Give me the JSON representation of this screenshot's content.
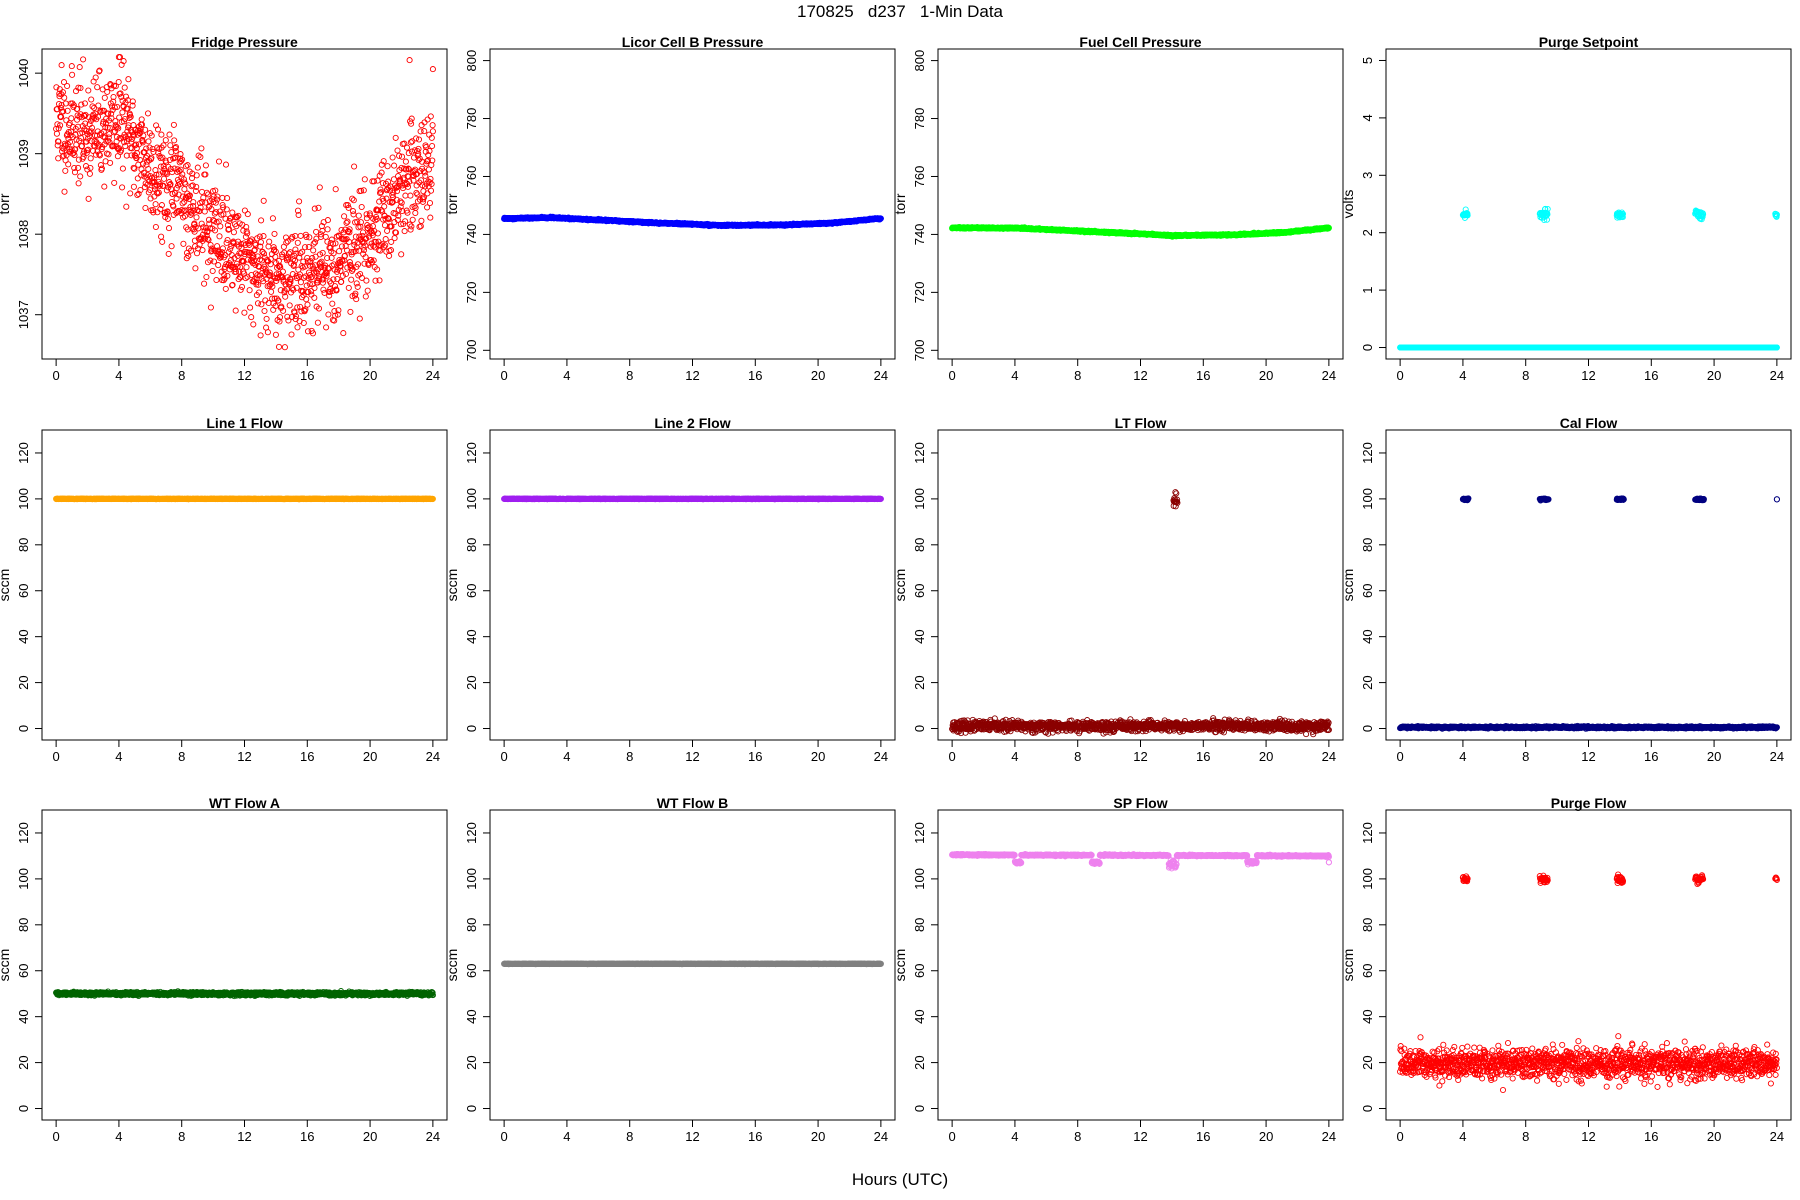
{
  "title": "170825   d237   1-Min Data",
  "xlabel": "Hours (UTC)",
  "chart_data": [
    {
      "type": "scatter",
      "title": "Fridge Pressure",
      "ylabel": "torr",
      "ylim": [
        1036.45,
        1040.3
      ],
      "yticks": [
        1037,
        1038,
        1039,
        1040
      ],
      "xlim": [
        -0.9,
        24.9
      ],
      "xticks": [
        0,
        4,
        8,
        12,
        16,
        20,
        24
      ],
      "color": "#ff0000",
      "filled": false,
      "gen": {
        "kind": "curve",
        "pts": [
          [
            0,
            1039.4
          ],
          [
            2,
            1039.25
          ],
          [
            4,
            1039.4
          ],
          [
            6,
            1038.85
          ],
          [
            8,
            1038.5
          ],
          [
            10,
            1038.05
          ],
          [
            12,
            1037.7
          ],
          [
            14,
            1037.45
          ],
          [
            16,
            1037.5
          ],
          [
            18,
            1037.65
          ],
          [
            20,
            1038.0
          ],
          [
            22,
            1038.55
          ],
          [
            24,
            1038.9
          ]
        ],
        "noise": 0.33,
        "seed": 11,
        "spikes": [
          [
            4.0,
            1040.2
          ],
          [
            4.3,
            1040.15
          ],
          [
            0.35,
            1040.1
          ],
          [
            24.0,
            1040.05
          ],
          [
            14.2,
            1036.6
          ],
          [
            14.0,
            1036.75
          ]
        ]
      }
    },
    {
      "type": "scatter",
      "title": "Licor Cell B Pressure",
      "ylabel": "torr",
      "ylim": [
        697,
        804
      ],
      "yticks": [
        700,
        720,
        740,
        760,
        780,
        800
      ],
      "xlim": [
        -0.9,
        24.9
      ],
      "xticks": [
        0,
        4,
        8,
        12,
        16,
        20,
        24
      ],
      "color": "#0000ff",
      "filled": true,
      "gen": {
        "kind": "curve",
        "pts": [
          [
            0,
            745.5
          ],
          [
            3,
            745.8
          ],
          [
            6,
            745.0
          ],
          [
            10,
            743.9
          ],
          [
            14,
            743.1
          ],
          [
            18,
            743.3
          ],
          [
            21,
            744.0
          ],
          [
            24,
            745.5
          ]
        ],
        "noise": 0.12,
        "seed": 12,
        "spikes": []
      }
    },
    {
      "type": "scatter",
      "title": "Fuel Cell Pressure",
      "ylabel": "torr",
      "ylim": [
        697,
        804
      ],
      "yticks": [
        700,
        720,
        740,
        760,
        780,
        800
      ],
      "xlim": [
        -0.9,
        24.9
      ],
      "xticks": [
        0,
        4,
        8,
        12,
        16,
        20,
        24
      ],
      "color": "#00ff00",
      "filled": true,
      "gen": {
        "kind": "curve",
        "pts": [
          [
            0,
            742.3
          ],
          [
            4,
            742.2
          ],
          [
            8,
            741.2
          ],
          [
            12,
            740.2
          ],
          [
            14,
            739.6
          ],
          [
            18,
            739.9
          ],
          [
            21,
            740.6
          ],
          [
            24,
            742.3
          ]
        ],
        "noise": 0.12,
        "seed": 13,
        "spikes": []
      }
    },
    {
      "type": "scatter",
      "title": "Purge Setpoint",
      "ylabel": "volts",
      "ylim": [
        -0.2,
        5.2
      ],
      "yticks": [
        0,
        1,
        2,
        3,
        4,
        5
      ],
      "xlim": [
        -0.9,
        24.9
      ],
      "xticks": [
        0,
        4,
        8,
        12,
        16,
        20,
        24
      ],
      "color": "#00ffff",
      "filled": false,
      "gen": {
        "kind": "curve",
        "pts": [
          [
            0,
            0.0
          ],
          [
            24,
            0.0
          ]
        ],
        "noise": 0.0,
        "seed": 14,
        "clusters": [
          [
            4.0,
            4.3,
            2.31,
            0.03
          ],
          [
            8.9,
            9.4,
            2.33,
            0.05
          ],
          [
            13.8,
            14.2,
            2.31,
            0.03
          ],
          [
            18.8,
            19.3,
            2.32,
            0.04
          ],
          [
            23.9,
            24.0,
            2.29,
            0.02
          ]
        ]
      }
    },
    {
      "type": "scatter",
      "title": "Line 1 Flow",
      "ylabel": "sccm",
      "ylim": [
        -5,
        130
      ],
      "yticks": [
        0,
        20,
        40,
        60,
        80,
        100,
        120
      ],
      "xlim": [
        -0.9,
        24.9
      ],
      "xticks": [
        0,
        4,
        8,
        12,
        16,
        20,
        24
      ],
      "color": "#ffa500",
      "filled": true,
      "gen": {
        "kind": "curve",
        "pts": [
          [
            0,
            100
          ],
          [
            24,
            100
          ]
        ],
        "noise": 0.05,
        "seed": 21,
        "spikes": []
      }
    },
    {
      "type": "scatter",
      "title": "Line 2 Flow",
      "ylabel": "sccm",
      "ylim": [
        -5,
        130
      ],
      "yticks": [
        0,
        20,
        40,
        60,
        80,
        100,
        120
      ],
      "xlim": [
        -0.9,
        24.9
      ],
      "xticks": [
        0,
        4,
        8,
        12,
        16,
        20,
        24
      ],
      "color": "#a020f0",
      "filled": true,
      "gen": {
        "kind": "curve",
        "pts": [
          [
            0,
            100
          ],
          [
            24,
            100
          ]
        ],
        "noise": 0.05,
        "seed": 22,
        "spikes": []
      }
    },
    {
      "type": "scatter",
      "title": "LT Flow",
      "ylabel": "sccm",
      "ylim": [
        -5,
        130
      ],
      "yticks": [
        0,
        20,
        40,
        60,
        80,
        100,
        120
      ],
      "xlim": [
        -0.9,
        24.9
      ],
      "xticks": [
        0,
        4,
        8,
        12,
        16,
        20,
        24
      ],
      "color": "#8b0000",
      "filled": false,
      "gen": {
        "kind": "curve",
        "pts": [
          [
            0,
            1.0
          ],
          [
            24,
            1.0
          ]
        ],
        "noise": 1.1,
        "seed": 23,
        "clusters": [
          [
            14.1,
            14.35,
            99.5,
            1.6
          ]
        ]
      }
    },
    {
      "type": "scatter",
      "title": "Cal Flow",
      "ylabel": "sccm",
      "ylim": [
        -5,
        130
      ],
      "yticks": [
        0,
        20,
        40,
        60,
        80,
        100,
        120
      ],
      "xlim": [
        -0.9,
        24.9
      ],
      "xticks": [
        0,
        4,
        8,
        12,
        16,
        20,
        24
      ],
      "color": "#000080",
      "filled": false,
      "gen": {
        "kind": "curve",
        "pts": [
          [
            0,
            0.5
          ],
          [
            24,
            0.5
          ]
        ],
        "noise": 0.2,
        "seed": 24,
        "clusters": [
          [
            4.0,
            4.35,
            99.8,
            0.2
          ],
          [
            8.9,
            9.45,
            99.8,
            0.2
          ],
          [
            13.8,
            14.25,
            99.8,
            0.2
          ],
          [
            18.8,
            19.35,
            99.8,
            0.2
          ],
          [
            24.0,
            24.0,
            99.8,
            0.0
          ]
        ]
      }
    },
    {
      "type": "scatter",
      "title": "WT Flow A",
      "ylabel": "sccm",
      "ylim": [
        -5,
        130
      ],
      "yticks": [
        0,
        20,
        40,
        60,
        80,
        100,
        120
      ],
      "xlim": [
        -0.9,
        24.9
      ],
      "xticks": [
        0,
        4,
        8,
        12,
        16,
        20,
        24
      ],
      "color": "#006400",
      "filled": false,
      "gen": {
        "kind": "curve",
        "pts": [
          [
            0,
            50
          ],
          [
            24,
            50
          ]
        ],
        "noise": 0.35,
        "seed": 31,
        "spikes": []
      }
    },
    {
      "type": "scatter",
      "title": "WT Flow B",
      "ylabel": "sccm",
      "ylim": [
        -5,
        130
      ],
      "yticks": [
        0,
        20,
        40,
        60,
        80,
        100,
        120
      ],
      "xlim": [
        -0.9,
        24.9
      ],
      "xticks": [
        0,
        4,
        8,
        12,
        16,
        20,
        24
      ],
      "color": "#808080",
      "filled": true,
      "gen": {
        "kind": "curve",
        "pts": [
          [
            0,
            63
          ],
          [
            24,
            63
          ]
        ],
        "noise": 0.05,
        "seed": 32,
        "spikes": []
      }
    },
    {
      "type": "scatter",
      "title": "SP Flow",
      "ylabel": "sccm",
      "ylim": [
        -5,
        130
      ],
      "yticks": [
        0,
        20,
        40,
        60,
        80,
        100,
        120
      ],
      "xlim": [
        -0.9,
        24.9
      ],
      "xticks": [
        0,
        4,
        8,
        12,
        16,
        20,
        24
      ],
      "color": "#ee82ee",
      "filled": false,
      "gen": {
        "kind": "curve",
        "pts": [
          [
            0,
            110.5
          ],
          [
            24,
            110.0
          ]
        ],
        "noise": 0.15,
        "seed": 33,
        "clusters": [
          [
            4.0,
            4.4,
            107.2,
            0.3
          ],
          [
            8.9,
            9.4,
            107.2,
            0.3
          ],
          [
            13.8,
            14.3,
            106.5,
            1.0
          ],
          [
            18.8,
            19.4,
            107.2,
            0.3
          ],
          [
            24.0,
            24.0,
            107.3,
            0.1
          ]
        ],
        "gaps": [
          [
            4.0,
            4.4
          ],
          [
            8.9,
            9.4
          ],
          [
            13.8,
            14.3
          ],
          [
            18.8,
            19.4
          ]
        ]
      }
    },
    {
      "type": "scatter",
      "title": "Purge Flow",
      "ylabel": "sccm",
      "ylim": [
        -5,
        130
      ],
      "yticks": [
        0,
        20,
        40,
        60,
        80,
        100,
        120
      ],
      "xlim": [
        -0.9,
        24.9
      ],
      "xticks": [
        0,
        4,
        8,
        12,
        16,
        20,
        24
      ],
      "color": "#ff0000",
      "filled": false,
      "gen": {
        "kind": "curve",
        "pts": [
          [
            0,
            19.5
          ],
          [
            24,
            19.5
          ]
        ],
        "noise": 3.2,
        "seed": 34,
        "clusters": [
          [
            4.0,
            4.3,
            100.0,
            0.6
          ],
          [
            8.9,
            9.4,
            99.6,
            0.6
          ],
          [
            13.8,
            14.2,
            99.6,
            0.8
          ],
          [
            18.8,
            19.3,
            100.0,
            0.8
          ],
          [
            23.9,
            24.0,
            99.8,
            0.6
          ]
        ],
        "spikes": [
          [
            13.9,
            31.5
          ],
          [
            1.3,
            31.0
          ],
          [
            2.5,
            10.0
          ]
        ]
      }
    }
  ]
}
